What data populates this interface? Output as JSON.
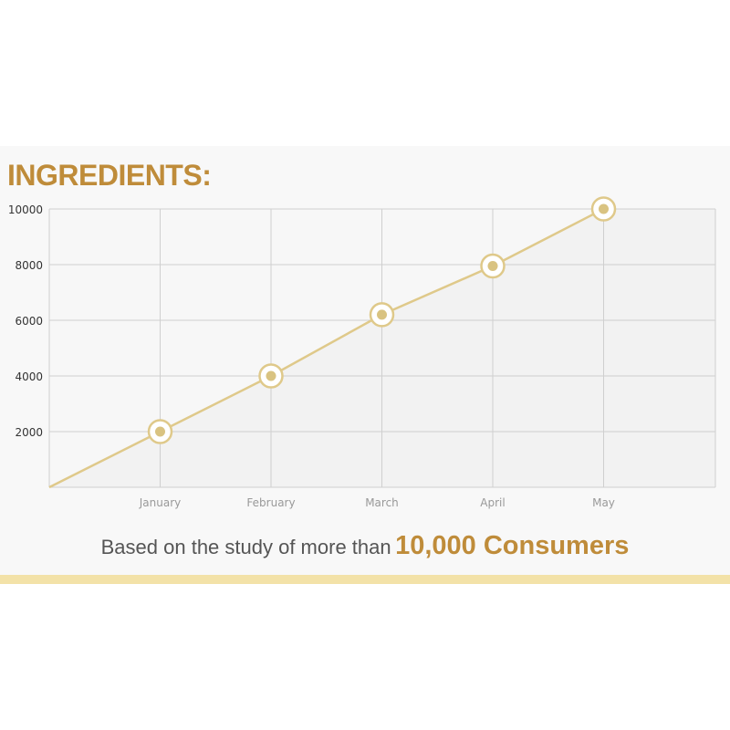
{
  "heading": "INGREDIENTS:",
  "caption": {
    "lead": "Based on the study of more than",
    "emphasis": "10,000 Consumers"
  },
  "colors": {
    "accent": "#bf8c3a",
    "line": "#dfc98a",
    "marker": "#d9c381",
    "bar": "#f3e2a8",
    "grid": "#cfcfcf",
    "plot_fill": "#f2f2f2",
    "tick_text": "#999999",
    "ytick_text": "#333333"
  },
  "chart_data": {
    "type": "area",
    "categories": [
      "January",
      "February",
      "March",
      "April",
      "May"
    ],
    "series": [
      {
        "values": [
          2000,
          4000,
          6200,
          7950,
          10000
        ]
      }
    ],
    "y_ticks": [
      2000,
      4000,
      6000,
      8000,
      10000
    ],
    "ylim": [
      0,
      10000
    ],
    "grid": true,
    "title": "",
    "xlabel": "",
    "ylabel": ""
  }
}
